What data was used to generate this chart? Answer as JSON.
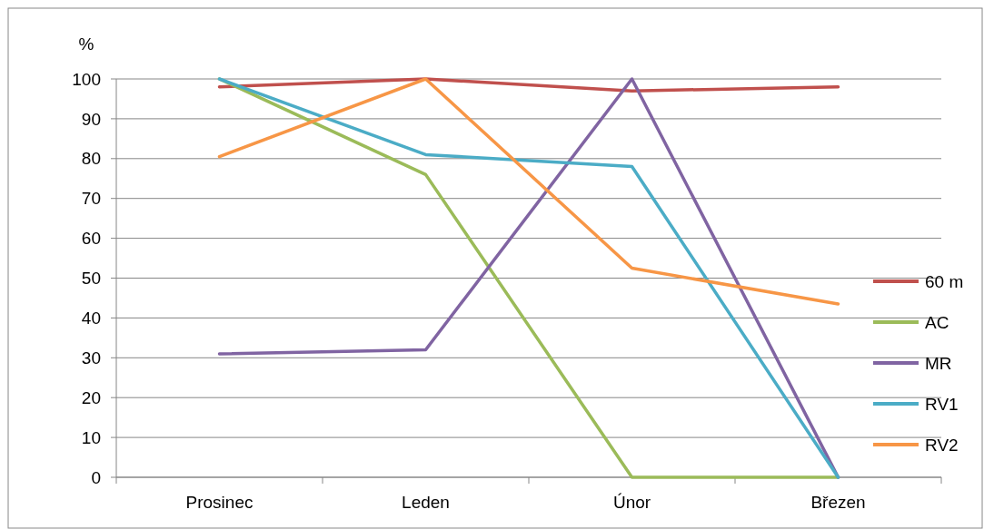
{
  "chart_data": {
    "type": "line",
    "ylabel": "%",
    "categories": [
      "Prosinec",
      "Leden",
      "Únor",
      "Březen"
    ],
    "series": [
      {
        "name": "60 m",
        "color": "#c0504d",
        "values": [
          98,
          100,
          97,
          98
        ]
      },
      {
        "name": "AC",
        "color": "#9bbb59",
        "values": [
          100,
          76,
          0,
          0
        ]
      },
      {
        "name": "MR",
        "color": "#8064a2",
        "values": [
          31,
          32,
          100,
          0
        ]
      },
      {
        "name": "RV1",
        "color": "#4bacc6",
        "values": [
          100,
          81,
          78,
          0
        ]
      },
      {
        "name": "RV2",
        "color": "#f79646",
        "values": [
          80.5,
          100,
          52.5,
          43.5
        ]
      }
    ],
    "ylim": [
      0,
      100
    ],
    "yticks": [
      0,
      10,
      20,
      30,
      40,
      50,
      60,
      70,
      80,
      90,
      100
    ],
    "grid": "y",
    "legend": "right",
    "marker": "none",
    "line_style": "solid"
  }
}
